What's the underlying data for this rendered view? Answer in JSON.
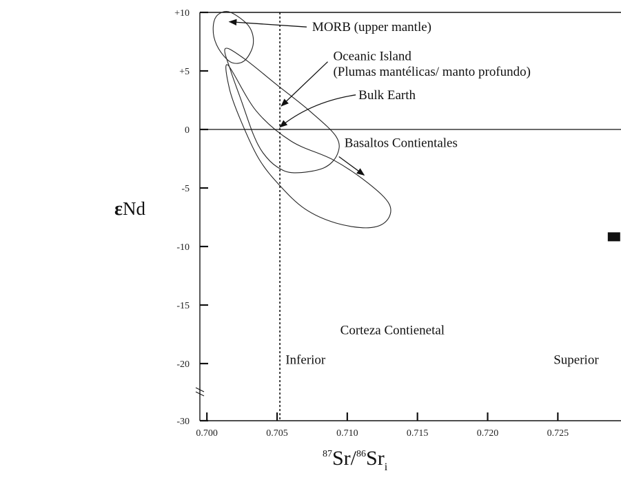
{
  "chart_data": {
    "type": "scatter",
    "title": "",
    "xlabel": {
      "sup1": "87",
      "main1": "Sr/",
      "sup2": "86",
      "main2": "Sr",
      "sub": "i"
    },
    "ylabel": {
      "symbol": "ε",
      "text": "Nd"
    },
    "xlim": [
      0.6995,
      0.7295
    ],
    "ylim": [
      -30,
      10
    ],
    "y_break": {
      "below": -20,
      "above": -30
    },
    "xticks": [
      {
        "value": 0.7,
        "label": "0.700"
      },
      {
        "value": 0.705,
        "label": "0.705"
      },
      {
        "value": 0.71,
        "label": "0.710"
      },
      {
        "value": 0.715,
        "label": "0.715"
      },
      {
        "value": 0.72,
        "label": "0.720"
      },
      {
        "value": 0.725,
        "label": "0.725"
      }
    ],
    "yticks": [
      {
        "value": 10,
        "label": "+10"
      },
      {
        "value": 5,
        "label": "+5"
      },
      {
        "value": 0,
        "label": "0"
      },
      {
        "value": -5,
        "label": "-5"
      },
      {
        "value": -10,
        "label": "-10"
      },
      {
        "value": -15,
        "label": "-15"
      },
      {
        "value": -20,
        "label": "-20"
      },
      {
        "value": -30,
        "label": "-30"
      }
    ],
    "reference_lines": {
      "horizontal_y": 0,
      "vertical_x": 0.7052
    },
    "fields": [
      {
        "name": "MORB (upper mantle)",
        "outline": [
          [
            0.7005,
            9.2
          ],
          [
            0.7009,
            9.9
          ],
          [
            0.7017,
            10
          ],
          [
            0.703,
            8.8
          ],
          [
            0.7033,
            7.3
          ],
          [
            0.7027,
            5.9
          ],
          [
            0.7018,
            5.7
          ],
          [
            0.701,
            6.6
          ],
          [
            0.7005,
            7.9
          ]
        ]
      },
      {
        "name": "Oceanic Island",
        "outline": [
          [
            0.7013,
            6.9
          ],
          [
            0.7026,
            6.1
          ],
          [
            0.705,
            3.8
          ],
          [
            0.7073,
            1.6
          ],
          [
            0.7092,
            -0.6
          ],
          [
            0.7093,
            -2.1
          ],
          [
            0.7083,
            -3.3
          ],
          [
            0.7062,
            -3.7
          ],
          [
            0.705,
            -3.2
          ],
          [
            0.704,
            -2.0
          ],
          [
            0.7033,
            -0.4
          ],
          [
            0.7025,
            2.3
          ],
          [
            0.7017,
            5.0
          ]
        ]
      },
      {
        "name": "Basaltos Contientales",
        "outline": [
          [
            0.7015,
            5.5
          ],
          [
            0.7035,
            1.6
          ],
          [
            0.706,
            -1.0
          ],
          [
            0.709,
            -2.6
          ],
          [
            0.7115,
            -4.6
          ],
          [
            0.713,
            -6.4
          ],
          [
            0.7128,
            -7.8
          ],
          [
            0.7115,
            -8.4
          ],
          [
            0.7092,
            -8.0
          ],
          [
            0.707,
            -6.8
          ],
          [
            0.7052,
            -4.8
          ],
          [
            0.7037,
            -2.5
          ],
          [
            0.7024,
            0.8
          ],
          [
            0.7016,
            3.5
          ]
        ]
      }
    ],
    "points": [
      {
        "x": 0.729,
        "y": -9.2,
        "marker": "square"
      }
    ],
    "annotations": [
      {
        "text": "MORB (upper mantle)",
        "x": 0.7075,
        "y": 8.4,
        "arrow_to": [
          0.7016,
          9.2
        ]
      },
      {
        "text": "Oceanic Island",
        "x": 0.709,
        "y": 5.9,
        "arrow_to": [
          0.7053,
          2.0
        ]
      },
      {
        "text": "(Plumas mantélicas/ manto profundo)",
        "x": 0.709,
        "y": 4.6,
        "arrow_to": null
      },
      {
        "text": "Bulk Earth",
        "x": 0.7108,
        "y": 2.6,
        "arrow_to": [
          0.7052,
          0.2
        ]
      },
      {
        "text": "Basaltos Contientales",
        "x": 0.7098,
        "y": -1.5,
        "arrow_to": [
          0.7112,
          -3.9
        ]
      },
      {
        "text": "Corteza Contienetal",
        "x": 0.7095,
        "y": -17.5,
        "arrow_to": null
      },
      {
        "text": "Inferior",
        "x": 0.7056,
        "y": -20.3,
        "arrow_to": null
      },
      {
        "text": "Superior",
        "x": 0.7247,
        "y": -20.3,
        "arrow_to": null
      }
    ],
    "grid": false,
    "legend": "none"
  }
}
